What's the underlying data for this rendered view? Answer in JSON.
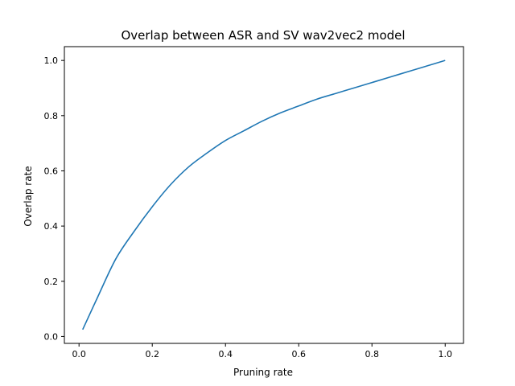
{
  "chart_data": {
    "type": "line",
    "title": "Overlap between ASR and SV wav2vec2 model",
    "xlabel": "Pruning rate",
    "ylabel": "Overlap rate",
    "xlim": [
      -0.04,
      1.05
    ],
    "ylim": [
      -0.025,
      1.05
    ],
    "xticks": [
      0.0,
      0.2,
      0.4,
      0.6,
      0.8,
      1.0
    ],
    "xtick_labels": [
      "0.0",
      "0.2",
      "0.4",
      "0.6",
      "0.8",
      "1.0"
    ],
    "yticks": [
      0.0,
      0.2,
      0.4,
      0.6,
      0.8,
      1.0
    ],
    "ytick_labels": [
      "0.0",
      "0.2",
      "0.4",
      "0.6",
      "0.8",
      "1.0"
    ],
    "grid": false,
    "series": [
      {
        "color": "#1f77b4",
        "x": [
          0.01,
          0.05,
          0.1,
          0.15,
          0.2,
          0.25,
          0.3,
          0.35,
          0.4,
          0.45,
          0.5,
          0.55,
          0.6,
          0.65,
          0.7,
          0.75,
          0.8,
          0.85,
          0.9,
          0.95,
          1.0
        ],
        "y": [
          0.025,
          0.14,
          0.28,
          0.38,
          0.47,
          0.55,
          0.615,
          0.665,
          0.71,
          0.745,
          0.78,
          0.81,
          0.835,
          0.86,
          0.88,
          0.9,
          0.92,
          0.94,
          0.96,
          0.98,
          1.0
        ]
      }
    ]
  }
}
